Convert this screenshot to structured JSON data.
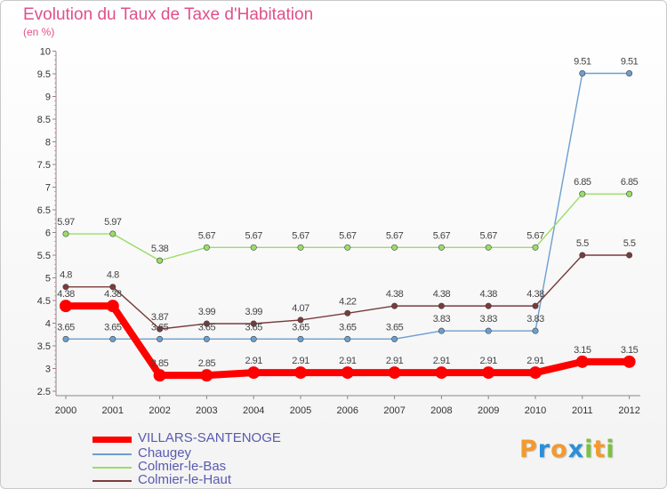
{
  "title": "Evolution du Taux de Taxe d'Habitation",
  "subtitle": "(en %)",
  "logo": {
    "letters": [
      "P",
      "r",
      "o",
      "x",
      "i",
      "t",
      "i"
    ],
    "colors": [
      "#f29a2e",
      "#2a8fd8",
      "#f29a2e",
      "#2a8fd8",
      "#7cc142",
      "#f29a2e",
      "#7cc142"
    ]
  },
  "chart_data": {
    "type": "line",
    "title": "Evolution du Taux de Taxe d'Habitation",
    "ylabel": "(en %)",
    "x": [
      "2000",
      "2001",
      "2002",
      "2003",
      "2004",
      "2005",
      "2006",
      "2007",
      "2008",
      "2009",
      "2010",
      "2011",
      "2012"
    ],
    "ylim": [
      2.5,
      10
    ],
    "yticks": [
      "2.5",
      "3",
      "3.5",
      "4",
      "4.5",
      "5",
      "5.5",
      "6",
      "6.5",
      "7",
      "7.5",
      "8",
      "8.5",
      "9",
      "9.5",
      "10"
    ],
    "grid": false,
    "legend": "bottom-left",
    "series": [
      {
        "name": "VILLARS-SANTENOGE",
        "color": "#ff0000",
        "values": [
          4.38,
          4.38,
          2.85,
          2.85,
          2.91,
          2.91,
          2.91,
          2.91,
          2.91,
          2.91,
          2.91,
          3.15,
          3.15
        ],
        "labels": [
          "4.38",
          "4.38",
          "2.85",
          "2.85",
          "2.91",
          "2.91",
          "2.91",
          "2.91",
          "2.91",
          "2.91",
          "2.91",
          "3.15",
          "3.15"
        ]
      },
      {
        "name": "Chaugey",
        "color": "#6b9fd0",
        "values": [
          3.65,
          3.65,
          3.65,
          3.65,
          3.65,
          3.65,
          3.65,
          3.65,
          3.83,
          3.83,
          3.83,
          9.51,
          9.51
        ],
        "labels": [
          "3.65",
          "3.65",
          "3.65",
          "3.65",
          "3.65",
          "3.65",
          "3.65",
          "3.65",
          "3.83",
          "3.83",
          "3.83",
          "9.51",
          "9.51"
        ]
      },
      {
        "name": "Colmier-le-Bas",
        "color": "#99dd66",
        "values": [
          5.97,
          5.97,
          5.38,
          5.67,
          5.67,
          5.67,
          5.67,
          5.67,
          5.67,
          5.67,
          5.67,
          6.85,
          6.85
        ],
        "labels": [
          "5.97",
          "5.97",
          "5.38",
          "5.67",
          "5.67",
          "5.67",
          "5.67",
          "5.67",
          "5.67",
          "5.67",
          "5.67",
          "6.85",
          "6.85"
        ]
      },
      {
        "name": "Colmier-le-Haut",
        "color": "#7a3b3b",
        "values": [
          4.8,
          4.8,
          3.87,
          3.99,
          3.99,
          4.07,
          4.22,
          4.38,
          4.38,
          4.38,
          4.38,
          5.5,
          5.5
        ],
        "labels": [
          "4.8",
          "4.8",
          "3.87",
          "3.99",
          "3.99",
          "4.07",
          "4.22",
          "4.38",
          "4.38",
          "4.38",
          "4.38",
          "5.5",
          "5.5"
        ]
      }
    ]
  }
}
